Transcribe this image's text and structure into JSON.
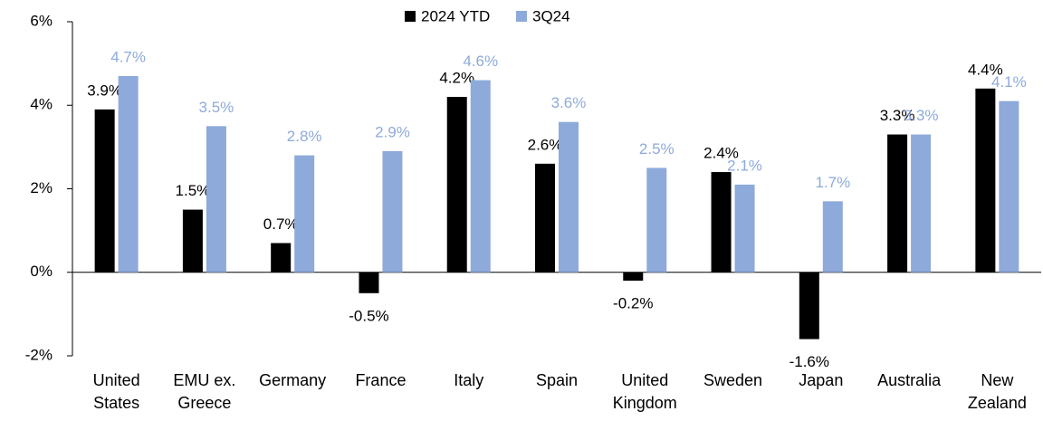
{
  "chart_data": {
    "type": "bar",
    "categories": [
      "United\nStates",
      "EMU ex.\nGreece",
      "Germany",
      "France",
      "Italy",
      "Spain",
      "United\nKingdom",
      "Sweden",
      "Japan",
      "Australia",
      "New\nZealand"
    ],
    "series": [
      {
        "name": "2024 YTD",
        "color": "#000000",
        "values": [
          3.9,
          1.5,
          0.7,
          -0.5,
          4.2,
          2.6,
          -0.2,
          2.4,
          -1.6,
          3.3,
          4.4
        ],
        "value_labels": [
          "3.9%",
          "1.5%",
          "0.7%",
          "-0.5%",
          "4.2%",
          "2.6%",
          "-0.2%",
          "2.4%",
          "-1.6%",
          "3.3%",
          "4.4%"
        ]
      },
      {
        "name": "3Q24",
        "color": "#8eaadb",
        "values": [
          4.7,
          3.5,
          2.8,
          2.9,
          4.6,
          3.6,
          2.5,
          2.1,
          1.7,
          3.3,
          4.1
        ],
        "value_labels": [
          "4.7%",
          "3.5%",
          "2.8%",
          "2.9%",
          "4.6%",
          "3.6%",
          "2.5%",
          "2.1%",
          "1.7%",
          "3.3%",
          "4.1%"
        ]
      }
    ],
    "ylim": [
      -2,
      6
    ],
    "yticks": [
      {
        "value": -2,
        "label": "-2%"
      },
      {
        "value": 0,
        "label": "0%"
      },
      {
        "value": 2,
        "label": "2%"
      },
      {
        "value": 4,
        "label": "4%"
      },
      {
        "value": 6,
        "label": "6%"
      }
    ],
    "legend": "top"
  }
}
